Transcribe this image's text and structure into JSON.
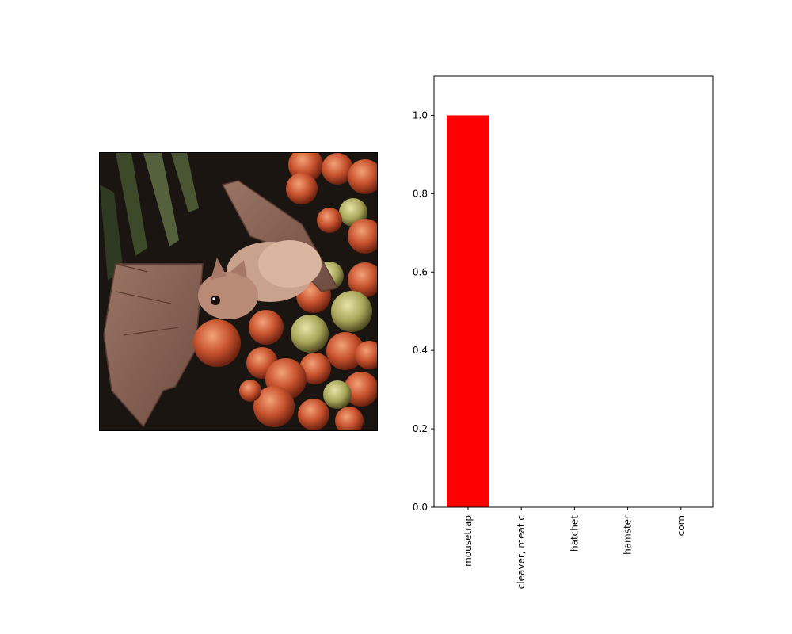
{
  "image_panel": {
    "subject": "bat-eating-fruit-photo"
  },
  "chart_data": {
    "type": "bar",
    "categories": [
      "mousetrap",
      "cleaver, meat c",
      "hatchet",
      "hamster",
      "corn"
    ],
    "values": [
      1.0,
      0.0,
      0.0,
      0.0,
      0.0
    ],
    "bar_color": "#ff0000",
    "ylim": [
      0,
      1.1
    ],
    "yticks": [
      "0.0",
      "0.2",
      "0.4",
      "0.6",
      "0.8",
      "1.0"
    ],
    "title": "",
    "xlabel": "",
    "ylabel": "",
    "grid": false
  }
}
